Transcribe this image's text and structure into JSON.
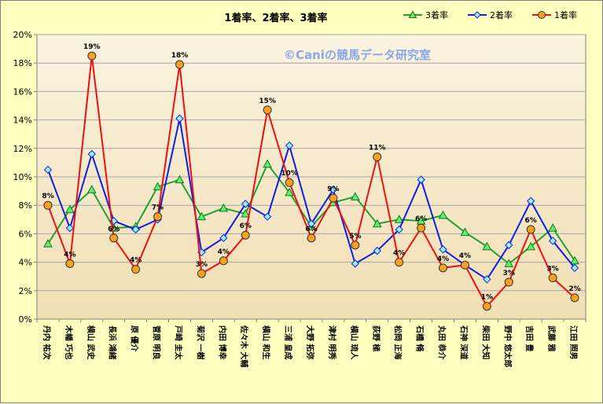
{
  "chart_data": {
    "type": "line",
    "title": "1着率、2着率、3着率",
    "watermark": "©Caniの競馬データ研究室",
    "ylim": [
      0,
      20
    ],
    "yticks": [
      0,
      2,
      4,
      6,
      8,
      10,
      12,
      14,
      16,
      18,
      20
    ],
    "ytick_labels": [
      "0%",
      "2%",
      "4%",
      "6%",
      "8%",
      "10%",
      "12%",
      "14%",
      "16%",
      "18%",
      "20%"
    ],
    "grid": true,
    "legend_position": "top-right",
    "categories": [
      "丹内 祐次",
      "木幡 巧也",
      "横山 武史",
      "長浜 鴻緒",
      "原 優介",
      "菅原 明良",
      "戸崎 圭太",
      "菊沢 一樹",
      "内田 博幸",
      "佐々木 大輔",
      "横山 和生",
      "三浦 皇成",
      "大野 拓弥",
      "津村 明秀",
      "横山 琉人",
      "荻野 極",
      "松岡 正海",
      "石橋 脩",
      "丸田 恭介",
      "石神 深道",
      "柴田 大知",
      "野中 悠太郎",
      "吉田 豊",
      "武藤 雅",
      "江田 照男"
    ],
    "series": [
      {
        "name": "3着率",
        "color": "#22a033",
        "marker": "triangle",
        "marker_fill": "#66ee66",
        "values": [
          5.3,
          7.7,
          9.1,
          6.4,
          6.5,
          9.3,
          9.8,
          7.2,
          7.8,
          7.4,
          10.9,
          8.9,
          6.5,
          8.2,
          8.6,
          6.7,
          7.0,
          6.9,
          7.3,
          6.1,
          5.1,
          3.9,
          5.1,
          6.4,
          4.1
        ]
      },
      {
        "name": "2着率",
        "color": "#1020e0",
        "marker": "diamond",
        "marker_fill": "#99eeff",
        "values": [
          10.5,
          6.4,
          11.6,
          6.9,
          6.3,
          7.0,
          14.1,
          4.7,
          5.7,
          8.1,
          7.2,
          12.2,
          6.7,
          9.1,
          3.9,
          4.8,
          6.3,
          9.8,
          4.9,
          3.8,
          2.8,
          5.2,
          8.3,
          5.5,
          3.6
        ]
      },
      {
        "name": "1着率",
        "color": "#ee1111",
        "marker": "circle",
        "marker_fill": "#f8a020",
        "values": [
          8.0,
          3.9,
          18.5,
          5.7,
          3.5,
          7.2,
          17.9,
          3.2,
          4.1,
          5.9,
          14.7,
          9.6,
          5.7,
          8.5,
          5.2,
          11.4,
          4.0,
          6.4,
          3.6,
          3.8,
          0.9,
          2.6,
          6.3,
          2.9,
          1.5
        ],
        "data_labels": [
          "8%",
          "4%",
          "19%",
          "6%",
          "4%",
          "7%",
          "18%",
          "3%",
          "4%",
          "6%",
          "15%",
          "10%",
          "6%",
          "9%",
          "5%",
          "11%",
          "4%",
          "6%",
          "4%",
          "4%",
          "1%",
          "3%",
          "6%",
          "3%",
          "2%"
        ]
      }
    ]
  }
}
